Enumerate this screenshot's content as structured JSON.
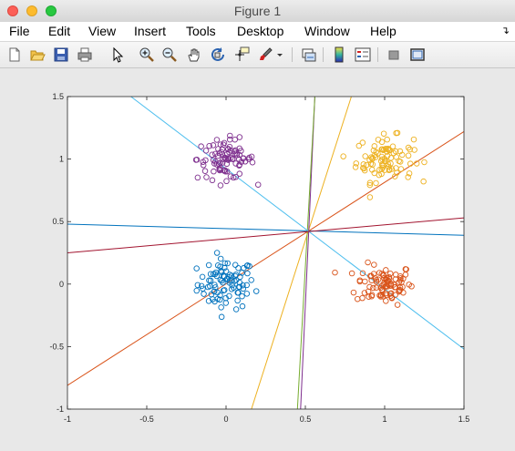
{
  "window": {
    "title": "Figure 1"
  },
  "menu": [
    "File",
    "Edit",
    "View",
    "Insert",
    "Tools",
    "Desktop",
    "Window",
    "Help"
  ],
  "toolbar": {
    "icons": [
      "new-figure-icon",
      "open-file-icon",
      "save-icon",
      "print-icon",
      "pointer-arrow-icon",
      "zoom-in-icon",
      "zoom-out-icon",
      "pan-hand-icon",
      "rotate-3d-icon",
      "data-cursor-icon",
      "brush-icon",
      "link-plot-icon",
      "insert-colorbar-icon",
      "insert-legend-icon",
      "hide-plot-tools-icon",
      "show-plot-tools-icon"
    ]
  },
  "chart_data": {
    "type": "scatter",
    "title": "",
    "xlabel": "",
    "ylabel": "",
    "xlim": [
      -1,
      1.5
    ],
    "ylim": [
      -1,
      1.5
    ],
    "xticks": [
      "-1",
      "-0.5",
      "0",
      "0.5",
      "1",
      "1.5"
    ],
    "yticks": [
      "-1",
      "-0.5",
      "0",
      "0.5",
      "1",
      "1.5"
    ],
    "grid": false,
    "clusters": [
      {
        "color": "#0072BD",
        "center": [
          0.0,
          0.0
        ],
        "spread": [
          0.09,
          0.1
        ],
        "count": 90
      },
      {
        "color": "#D95319",
        "center": [
          1.0,
          0.0
        ],
        "spread": [
          0.09,
          0.08
        ],
        "count": 90
      },
      {
        "color": "#EDB120",
        "center": [
          1.0,
          1.0
        ],
        "spread": [
          0.09,
          0.09
        ],
        "count": 90
      },
      {
        "color": "#7E2F8E",
        "center": [
          0.0,
          1.0
        ],
        "spread": [
          0.09,
          0.08
        ],
        "count": 90
      }
    ],
    "lines": [
      {
        "color": "#0072BD",
        "x": [
          -1,
          1.5
        ],
        "y": [
          0.48,
          0.39
        ]
      },
      {
        "color": "#D95319",
        "x": [
          -1,
          1.5
        ],
        "y": [
          -0.81,
          1.22
        ]
      },
      {
        "color": "#EDB120",
        "x": [
          0.16,
          0.79
        ],
        "y": [
          -1,
          1.5
        ]
      },
      {
        "color": "#7E2F8E",
        "x": [
          0.47,
          0.56
        ],
        "y": [
          -1,
          1.5
        ]
      },
      {
        "color": "#77AC30",
        "x": [
          0.45,
          0.56
        ],
        "y": [
          -1,
          1.5
        ]
      },
      {
        "color": "#4DBEEE",
        "x": [
          -0.6,
          1.5
        ],
        "y": [
          1.5,
          -0.52
        ]
      },
      {
        "color": "#A2142F",
        "x": [
          -1,
          1.5
        ],
        "y": [
          0.25,
          0.53
        ]
      }
    ]
  }
}
